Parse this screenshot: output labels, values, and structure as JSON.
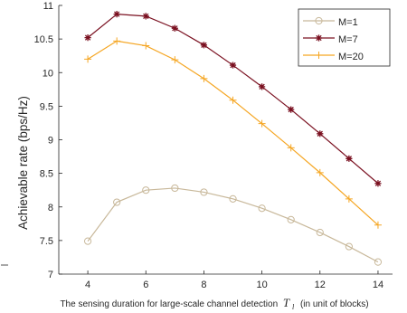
{
  "chart_data": {
    "type": "line",
    "title": "",
    "xlabel": "The sensing duration for large-scale channel detection",
    "xlabel_symbol": "T",
    "xlabel_symbol_sub": "l",
    "xlabel_suffix": "(in unit of blocks)",
    "ylabel": "Achievable rate (bps/Hz)",
    "xlim": [
      3,
      14.5
    ],
    "ylim": [
      7,
      11
    ],
    "x_ticks": [
      "4",
      "6",
      "8",
      "10",
      "12",
      "14"
    ],
    "y_ticks": [
      "7",
      "7.5",
      "8",
      "8.5",
      "9",
      "9.5",
      "10",
      "10.5",
      "11"
    ],
    "grid": false,
    "legend_position": "top-right",
    "x": [
      4,
      5,
      6,
      7,
      8,
      9,
      10,
      11,
      12,
      13,
      14
    ],
    "series": [
      {
        "name": "M=1",
        "color": "#c8b89a",
        "marker": "circle",
        "values": [
          7.49,
          8.07,
          8.25,
          8.28,
          8.22,
          8.12,
          7.98,
          7.81,
          7.62,
          7.41,
          7.18
        ]
      },
      {
        "name": "M=7",
        "color": "#7a1020",
        "marker": "asterisk",
        "values": [
          10.52,
          10.87,
          10.84,
          10.66,
          10.41,
          10.11,
          9.79,
          9.45,
          9.09,
          8.72,
          8.35
        ]
      },
      {
        "name": "M=20",
        "color": "#f5a623",
        "marker": "plus",
        "values": [
          10.2,
          10.47,
          10.4,
          10.19,
          9.91,
          9.59,
          9.24,
          8.88,
          8.51,
          8.12,
          7.73
        ]
      }
    ]
  }
}
